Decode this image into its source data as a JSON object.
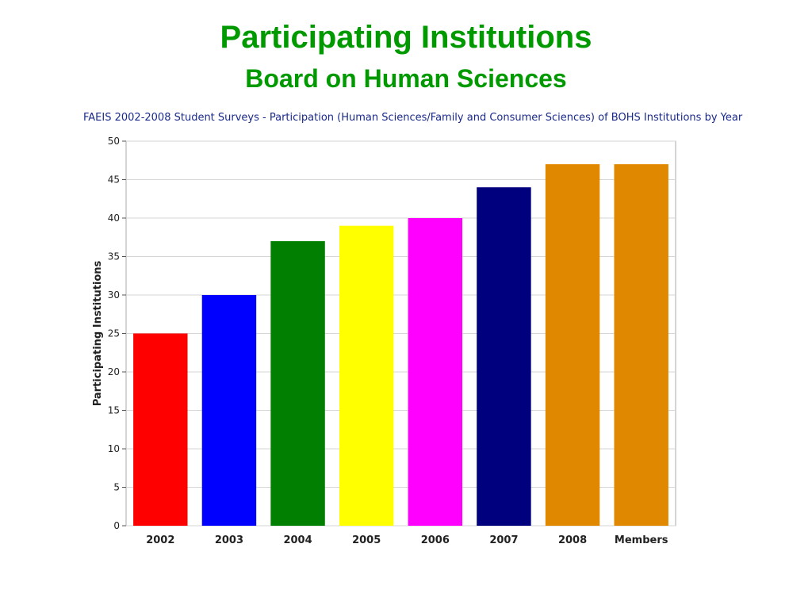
{
  "slide": {
    "title": "Participating Institutions",
    "subtitle": "Board on Human Sciences"
  },
  "colors": {
    "heading": "#009900",
    "chart_title": "#1a2a8a"
  },
  "chart_data": {
    "type": "bar",
    "title": "FAEIS 2002-2008 Student Surveys - Participation (Human Sciences/Family and Consumer Sciences) of BOHS Institutions by Year",
    "xlabel": "",
    "ylabel": "Participating Institutions",
    "categories": [
      "2002",
      "2003",
      "2004",
      "2005",
      "2006",
      "2007",
      "2008",
      "Members"
    ],
    "values": [
      25,
      30,
      37,
      39,
      40,
      44,
      47,
      47
    ],
    "bar_colors": [
      "#ff0000",
      "#0000ff",
      "#007f00",
      "#ffff00",
      "#ff00ff",
      "#00007f",
      "#e08800",
      "#e08800"
    ],
    "ylim": [
      0,
      50
    ],
    "yticks": [
      0,
      5,
      10,
      15,
      20,
      25,
      30,
      35,
      40,
      45,
      50
    ],
    "grid": true,
    "legend": "none"
  }
}
